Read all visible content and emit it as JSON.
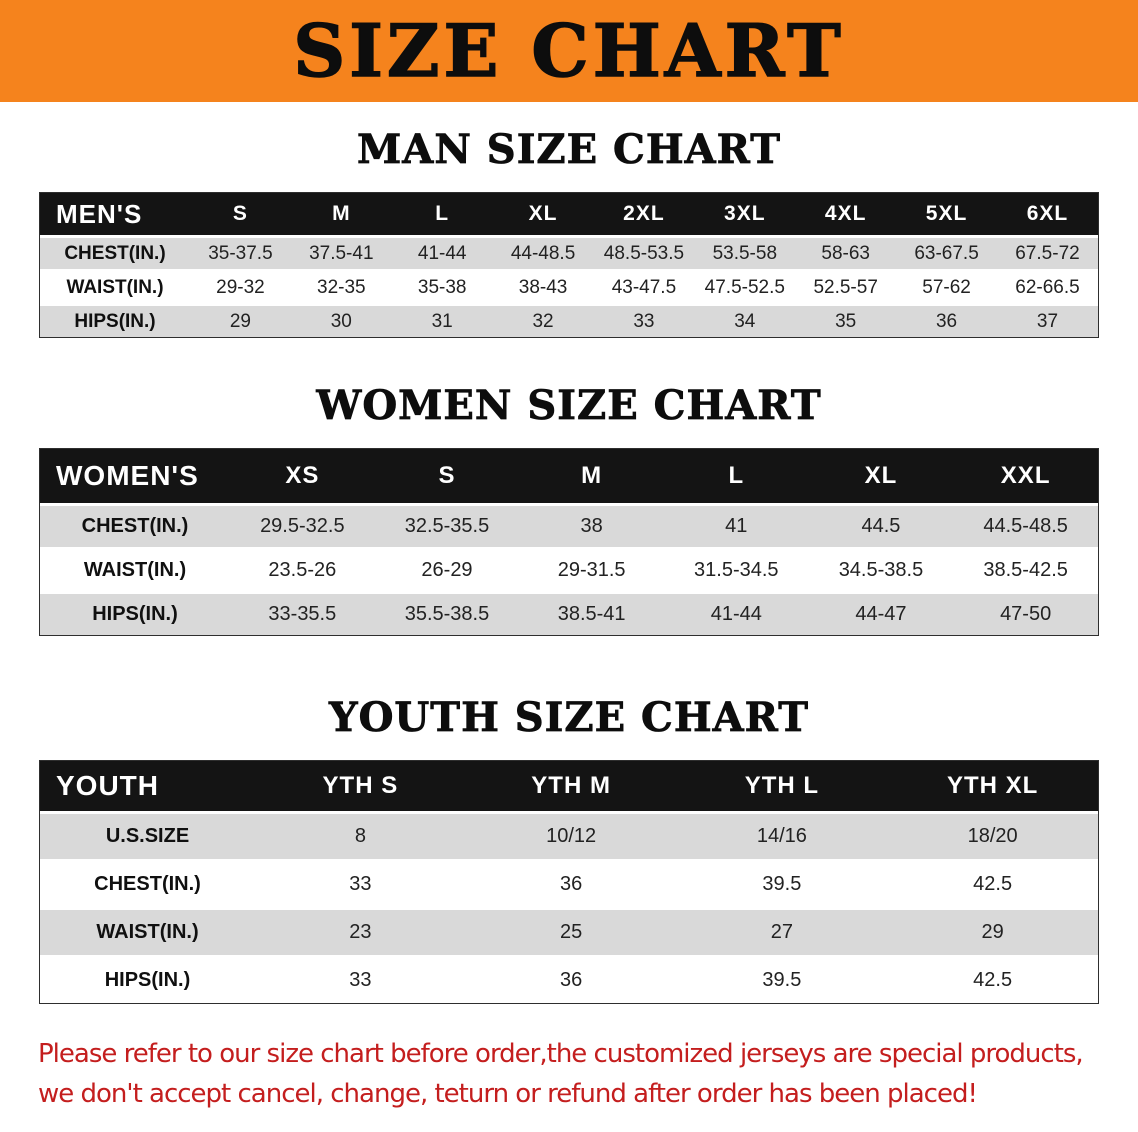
{
  "banner": {
    "title": "SIZE CHART"
  },
  "men": {
    "heading": "MAN SIZE CHART",
    "table": {
      "label": "MEN'S",
      "columns": [
        "S",
        "M",
        "L",
        "XL",
        "2XL",
        "3XL",
        "4XL",
        "5XL",
        "6XL"
      ],
      "rows": [
        {
          "label": "CHEST(IN.)",
          "values": [
            "35-37.5",
            "37.5-41",
            "41-44",
            "44-48.5",
            "48.5-53.5",
            "53.5-58",
            "58-63",
            "63-67.5",
            "67.5-72"
          ]
        },
        {
          "label": "WAIST(IN.)",
          "values": [
            "29-32",
            "32-35",
            "35-38",
            "38-43",
            "43-47.5",
            "47.5-52.5",
            "52.5-57",
            "57-62",
            "62-66.5"
          ]
        },
        {
          "label": "HIPS(IN.)",
          "values": [
            "29",
            "30",
            "31",
            "32",
            "33",
            "34",
            "35",
            "36",
            "37"
          ]
        }
      ]
    }
  },
  "women": {
    "heading": "WOMEN SIZE CHART",
    "table": {
      "label": "WOMEN'S",
      "columns": [
        "XS",
        "S",
        "M",
        "L",
        "XL",
        "XXL"
      ],
      "rows": [
        {
          "label": "CHEST(IN.)",
          "values": [
            "29.5-32.5",
            "32.5-35.5",
            "38",
            "41",
            "44.5",
            "44.5-48.5"
          ]
        },
        {
          "label": "WAIST(IN.)",
          "values": [
            "23.5-26",
            "26-29",
            "29-31.5",
            "31.5-34.5",
            "34.5-38.5",
            "38.5-42.5"
          ]
        },
        {
          "label": "HIPS(IN.)",
          "values": [
            "33-35.5",
            "35.5-38.5",
            "38.5-41",
            "41-44",
            "44-47",
            "47-50"
          ]
        }
      ]
    }
  },
  "youth": {
    "heading": "YOUTH SIZE CHART",
    "table": {
      "label": "YOUTH",
      "columns": [
        "YTH S",
        "YTH M",
        "YTH L",
        "YTH XL"
      ],
      "rows": [
        {
          "label": "U.S.SIZE",
          "values": [
            "8",
            "10/12",
            "14/16",
            "18/20"
          ]
        },
        {
          "label": "CHEST(IN.)",
          "values": [
            "33",
            "36",
            "39.5",
            "42.5"
          ]
        },
        {
          "label": "WAIST(IN.)",
          "values": [
            "23",
            "25",
            "27",
            "29"
          ]
        },
        {
          "label": "HIPS(IN.)",
          "values": [
            "33",
            "36",
            "39.5",
            "42.5"
          ]
        }
      ]
    }
  },
  "disclaimer": {
    "line1": "Please refer to our size chart before order,the customized jerseys are special products,",
    "line2": "we don't accept cancel, change, teturn or refund after order has been placed!"
  },
  "colors": {
    "banner_bg": "#F5831D",
    "header_bg": "#141414",
    "row_alt_bg": "#D9D9D9",
    "disclaimer_color": "#C41E1E"
  }
}
